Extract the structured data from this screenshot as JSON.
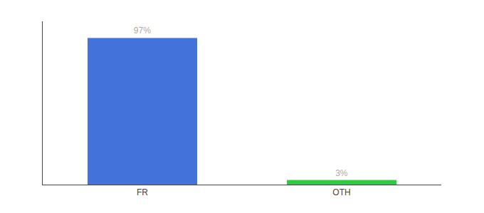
{
  "chart_data": {
    "type": "bar",
    "categories": [
      "FR",
      "OTH"
    ],
    "values": [
      97,
      3
    ],
    "value_labels": [
      "97%",
      "3%"
    ],
    "data_labels": true,
    "colors": [
      "#4472db",
      "#2ecc40"
    ],
    "ylim": [
      0,
      108
    ],
    "grid": false,
    "tick_labels": "x"
  }
}
